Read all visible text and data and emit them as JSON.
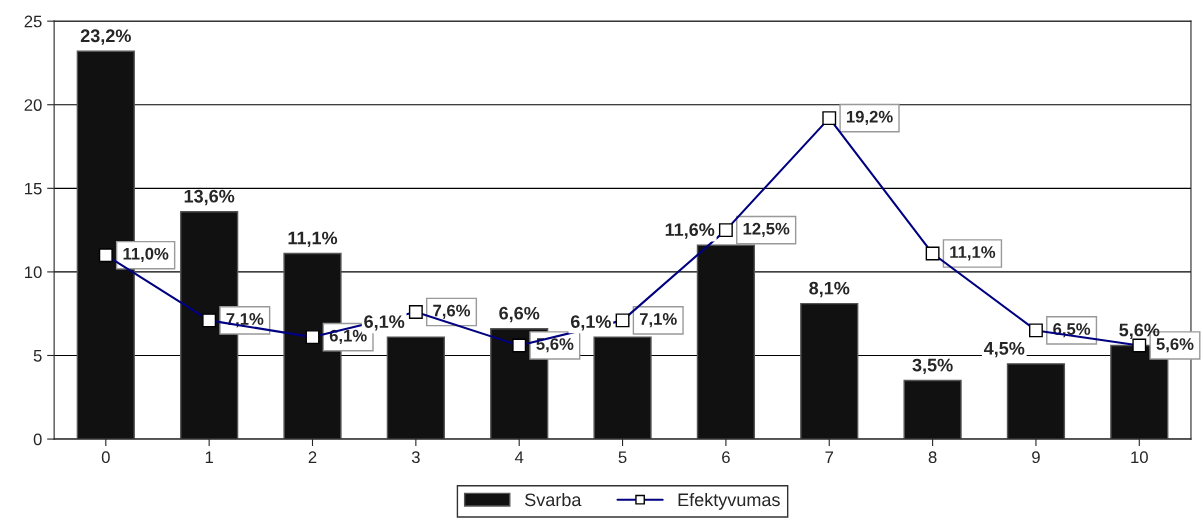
{
  "chart_data": {
    "type": "bar",
    "categories": [
      "0",
      "1",
      "2",
      "3",
      "4",
      "5",
      "6",
      "7",
      "8",
      "9",
      "10"
    ],
    "series": [
      {
        "name": "Svarba",
        "color": "#111111",
        "values": [
          23.2,
          13.6,
          11.1,
          6.1,
          6.6,
          6.1,
          11.6,
          8.1,
          3.5,
          4.5,
          5.6
        ],
        "value_labels": [
          "23,2%",
          "13,6%",
          "11,1%",
          "6,1%",
          "6,6%",
          "6,1%",
          "11,6%",
          "8,1%",
          "3,5%",
          "4,5%",
          "5,6%"
        ]
      },
      {
        "name": "Efektyvumas",
        "type": "line",
        "color": "#000080",
        "marker": "square",
        "line_style": "solid",
        "values": [
          11.0,
          7.1,
          6.1,
          7.6,
          5.6,
          7.1,
          12.5,
          19.2,
          11.1,
          6.5,
          5.6
        ],
        "value_labels": [
          "11,0%",
          "7,1%",
          "6,1%",
          "7,6%",
          "5,6%",
          "7,1%",
          "12,5%",
          "19,2%",
          "11,1%",
          "6,5%",
          "5,6%"
        ]
      }
    ],
    "ylim": [
      0,
      25
    ],
    "yticks": [
      0,
      5,
      10,
      15,
      20,
      25
    ],
    "grid": "y",
    "legend": "bottom"
  }
}
